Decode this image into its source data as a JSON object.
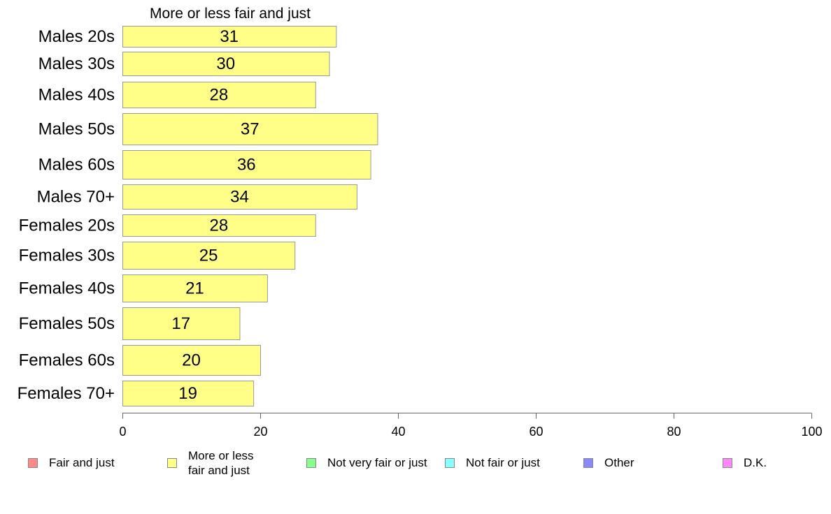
{
  "chart_data": {
    "type": "bar",
    "orientation": "horizontal",
    "title": "More or less fair and just",
    "categories": [
      "Males 20s",
      "Males 30s",
      "Males 40s",
      "Males 50s",
      "Males 60s",
      "Males 70+",
      "Females 20s",
      "Females 30s",
      "Females 40s",
      "Females 50s",
      "Females 60s",
      "Females 70+"
    ],
    "values": [
      31,
      30,
      28,
      37,
      36,
      34,
      28,
      25,
      21,
      17,
      20,
      19
    ],
    "xlim": [
      0,
      100
    ],
    "xticks": [
      0,
      20,
      40,
      60,
      80,
      100
    ],
    "grid": false,
    "bar_color": "#ffff88",
    "legend_position": "bottom",
    "legend": [
      {
        "label": "Fair and just",
        "color": "#ff8888"
      },
      {
        "label": "More or less fair and just",
        "color": "#ffff88"
      },
      {
        "label": "Not very fair or just",
        "color": "#88ff88"
      },
      {
        "label": "Not fair or just",
        "color": "#88ffff"
      },
      {
        "label": "Other",
        "color": "#8888ff"
      },
      {
        "label": "D.K.",
        "color": "#ff88ff"
      }
    ]
  }
}
